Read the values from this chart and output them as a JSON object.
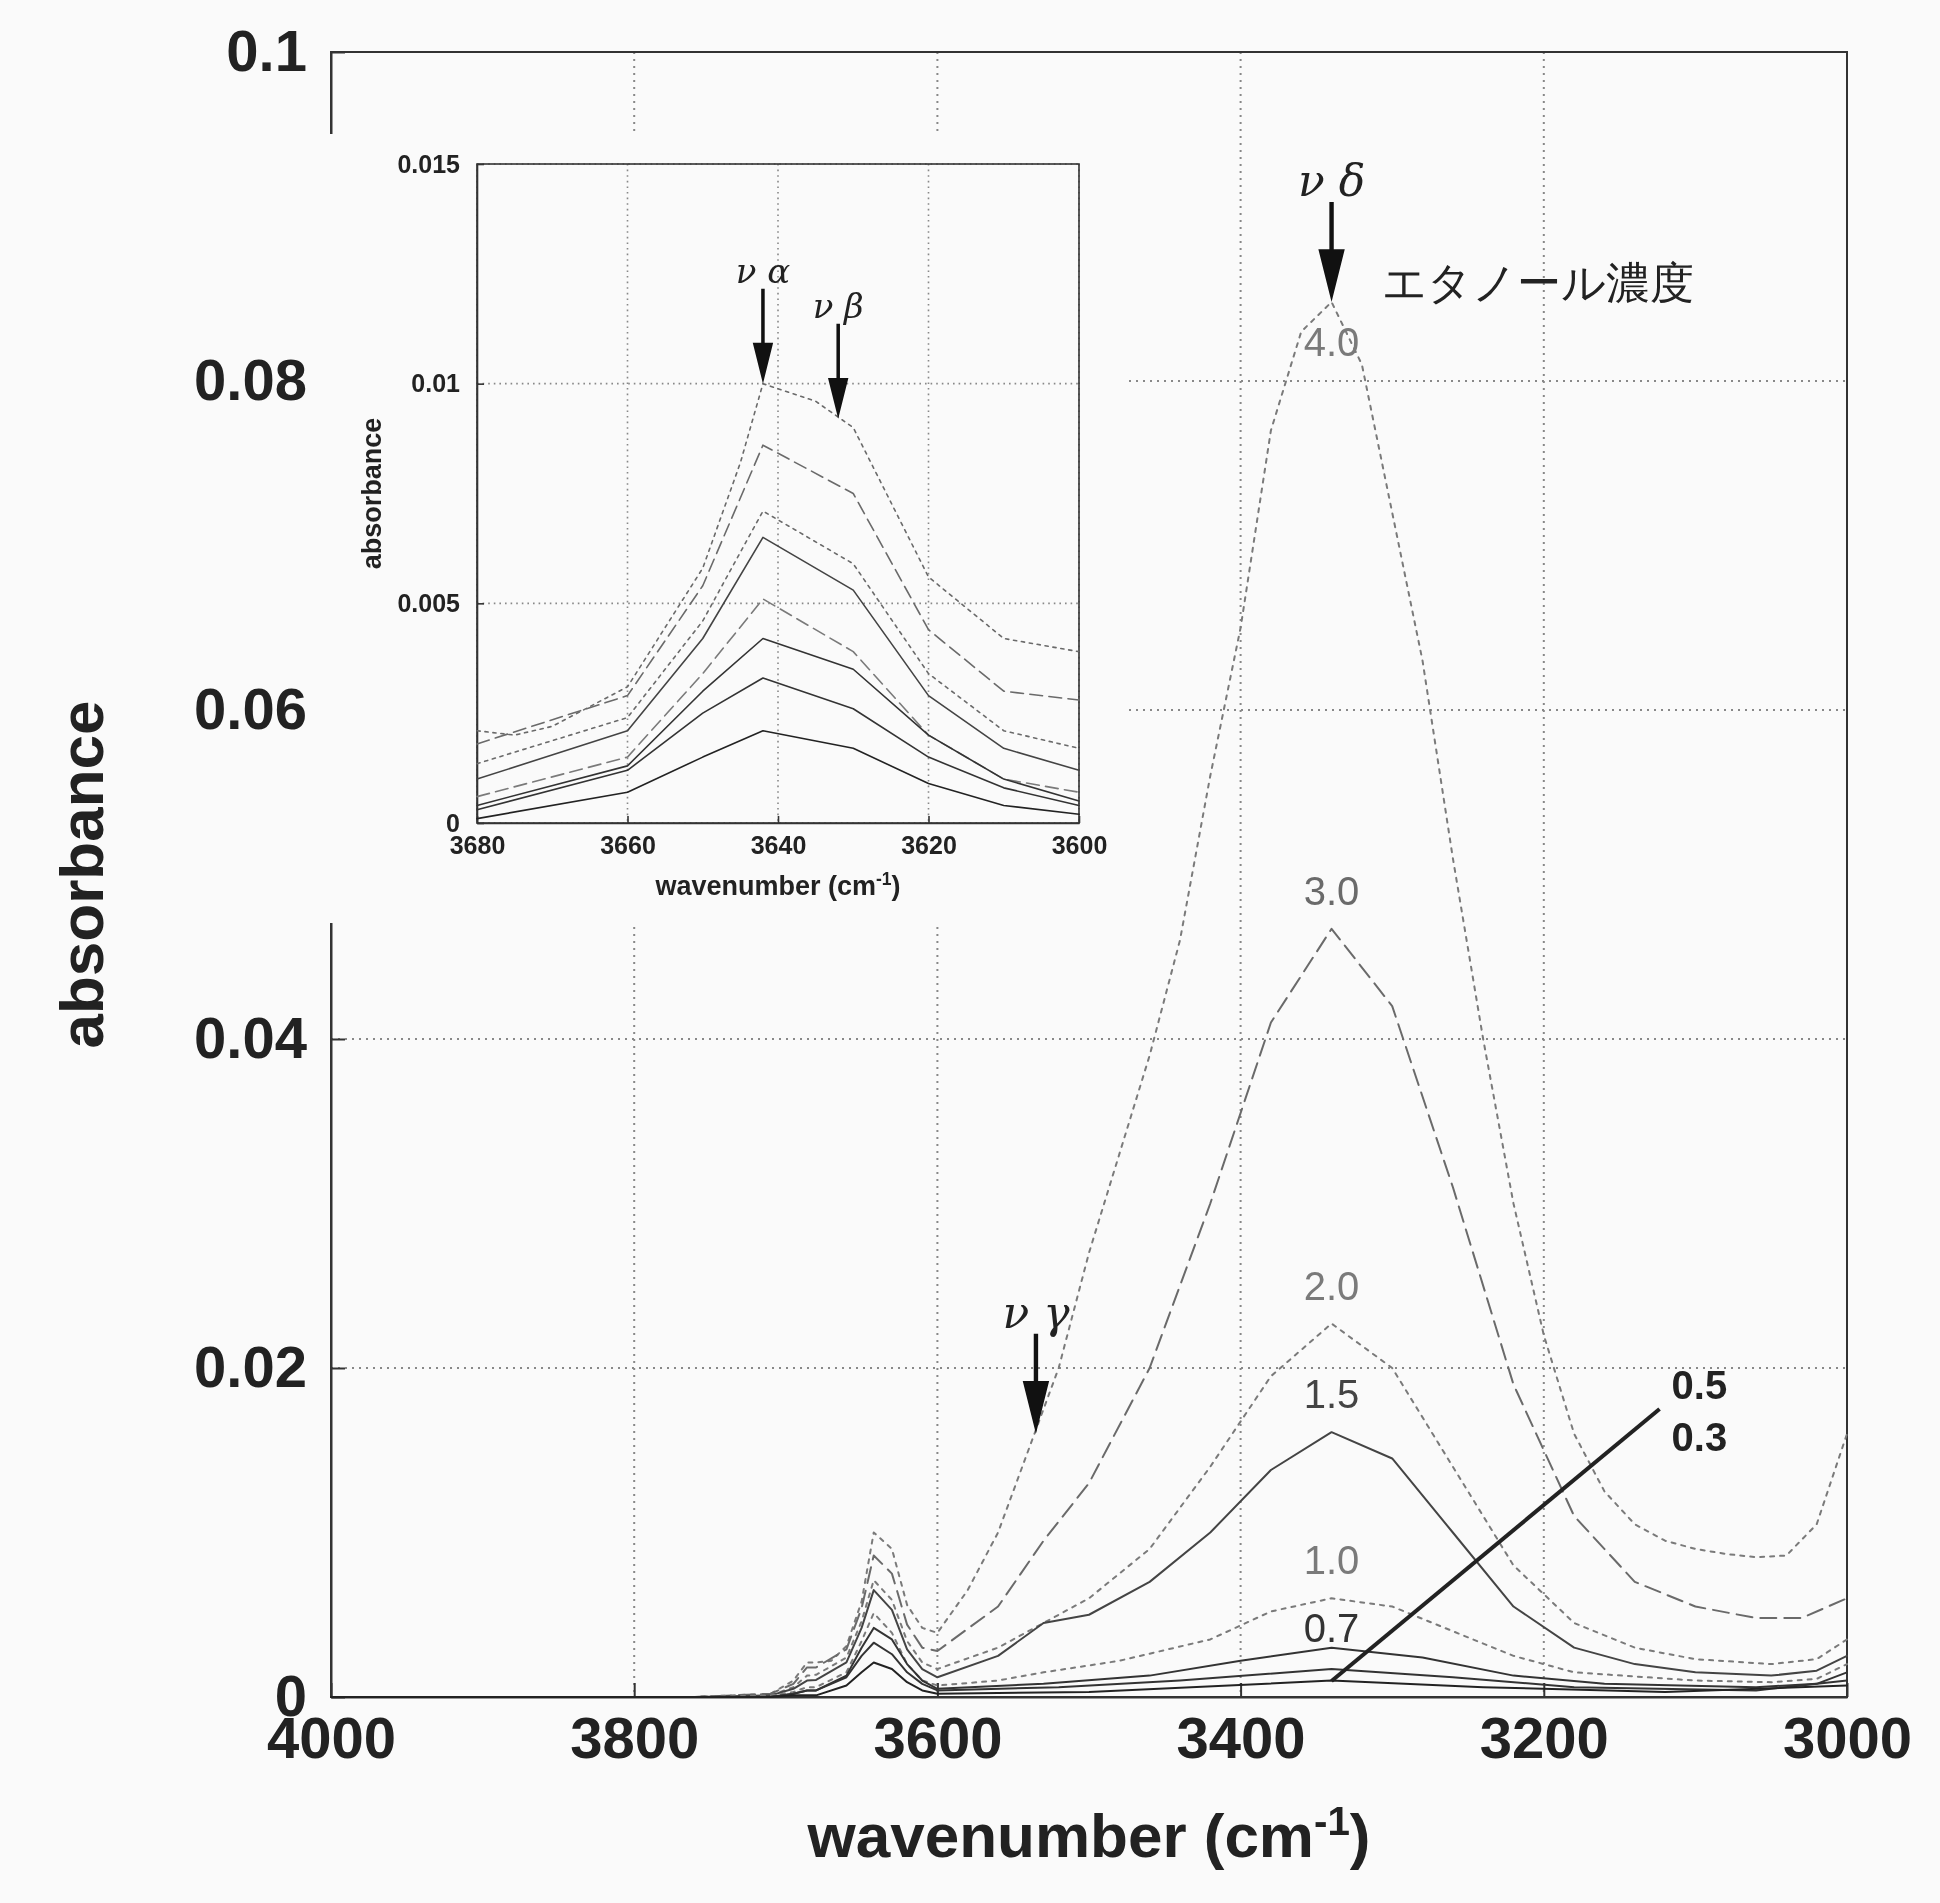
{
  "chart_data": [
    {
      "type": "line",
      "xlabel": "wavenumber (cm$^{-1}$)",
      "ylabel": "absorbance",
      "xlim": [
        4000,
        3000
      ],
      "ylim": [
        0,
        0.1
      ],
      "xticks": [
        4000,
        3800,
        3600,
        3400,
        3200,
        3000
      ],
      "yticks": [
        0,
        0.02,
        0.04,
        0.06,
        0.08,
        0.1
      ],
      "grid": true,
      "series": [
        {
          "name": "4.0",
          "color": "#7a7a7a",
          "line_style": "dotted",
          "x": [
            4000,
            3760,
            3710,
            3695,
            3686,
            3680,
            3670,
            3660,
            3650,
            3642,
            3630,
            3620,
            3610,
            3600,
            3580,
            3560,
            3540,
            3520,
            3500,
            3480,
            3460,
            3440,
            3420,
            3400,
            3380,
            3360,
            3340,
            3320,
            3300,
            3280,
            3260,
            3240,
            3220,
            3200,
            3180,
            3160,
            3140,
            3120,
            3100,
            3080,
            3060,
            3040,
            3020,
            3000
          ],
          "values": [
            0,
            0,
            0.0002,
            0.001,
            0.0021,
            0.0021,
            0.0022,
            0.0031,
            0.0058,
            0.01,
            0.009,
            0.0056,
            0.0042,
            0.0039,
            0.0065,
            0.01,
            0.015,
            0.02,
            0.027,
            0.033,
            0.039,
            0.046,
            0.056,
            0.065,
            0.077,
            0.083,
            0.0848,
            0.081,
            0.072,
            0.063,
            0.051,
            0.04,
            0.03,
            0.022,
            0.016,
            0.0125,
            0.0105,
            0.0095,
            0.009,
            0.0087,
            0.0085,
            0.0086,
            0.0105,
            0.016
          ]
        },
        {
          "name": "3.0",
          "color": "#6a6a6a",
          "line_style": "dashed",
          "x": [
            4000,
            3760,
            3710,
            3695,
            3686,
            3680,
            3660,
            3650,
            3642,
            3630,
            3620,
            3610,
            3600,
            3560,
            3530,
            3500,
            3460,
            3420,
            3380,
            3340,
            3300,
            3260,
            3220,
            3180,
            3140,
            3100,
            3060,
            3030,
            3000
          ],
          "values": [
            0,
            0,
            0.0002,
            0.0008,
            0.0018,
            0.0018,
            0.0029,
            0.0054,
            0.0086,
            0.0075,
            0.0044,
            0.003,
            0.0028,
            0.0055,
            0.0095,
            0.013,
            0.02,
            0.03,
            0.041,
            0.0467,
            0.042,
            0.031,
            0.019,
            0.011,
            0.007,
            0.0055,
            0.0048,
            0.0048,
            0.006
          ]
        },
        {
          "name": "2.0",
          "color": "#7a7a7a",
          "line_style": "dotted",
          "x": [
            4000,
            3760,
            3710,
            3695,
            3686,
            3680,
            3660,
            3650,
            3642,
            3630,
            3620,
            3610,
            3600,
            3560,
            3530,
            3500,
            3460,
            3420,
            3380,
            3340,
            3300,
            3260,
            3220,
            3180,
            3140,
            3100,
            3050,
            3020,
            3000
          ],
          "values": [
            0,
            0,
            0.0001,
            0.0006,
            0.0013,
            0.00135,
            0.0024,
            0.0046,
            0.0071,
            0.0059,
            0.0034,
            0.0021,
            0.0017,
            0.003,
            0.0045,
            0.006,
            0.009,
            0.014,
            0.0195,
            0.0227,
            0.02,
            0.014,
            0.008,
            0.0045,
            0.003,
            0.0023,
            0.002,
            0.0023,
            0.0035
          ]
        },
        {
          "name": "1.5",
          "color": "#444444",
          "line_style": "solid",
          "x": [
            4000,
            3760,
            3710,
            3695,
            3686,
            3680,
            3660,
            3650,
            3642,
            3630,
            3620,
            3610,
            3600,
            3560,
            3530,
            3500,
            3460,
            3420,
            3380,
            3340,
            3300,
            3260,
            3220,
            3180,
            3140,
            3100,
            3050,
            3020,
            3000
          ],
          "values": [
            0,
            0,
            0.0001,
            0.0005,
            0.001,
            0.00104,
            0.0021,
            0.0042,
            0.0065,
            0.0053,
            0.0029,
            0.0017,
            0.0012,
            0.0025,
            0.0045,
            0.005,
            0.007,
            0.01,
            0.0138,
            0.0161,
            0.0145,
            0.01,
            0.0055,
            0.003,
            0.002,
            0.0015,
            0.0013,
            0.0016,
            0.0025
          ]
        },
        {
          "name": "1.0",
          "color": "#7a7a7a",
          "line_style": "dotted",
          "x": [
            4000,
            3760,
            3710,
            3695,
            3686,
            3680,
            3660,
            3650,
            3642,
            3630,
            3620,
            3610,
            3600,
            3560,
            3530,
            3480,
            3420,
            3380,
            3340,
            3300,
            3260,
            3220,
            3180,
            3100,
            3050,
            3020,
            3000
          ],
          "values": [
            0,
            0,
            0.0001,
            0.0003,
            0.0006,
            0.0006,
            0.0015,
            0.0034,
            0.0051,
            0.0039,
            0.002,
            0.001,
            0.0007,
            0.001,
            0.0015,
            0.0022,
            0.0035,
            0.0052,
            0.006,
            0.0055,
            0.004,
            0.0025,
            0.0015,
            0.001,
            0.0009,
            0.0011,
            0.002
          ]
        },
        {
          "name": "0.7",
          "color": "#333333",
          "line_style": "solid",
          "x": [
            4000,
            3760,
            3710,
            3695,
            3686,
            3680,
            3660,
            3650,
            3642,
            3630,
            3620,
            3610,
            3600,
            3530,
            3460,
            3400,
            3340,
            3280,
            3220,
            3160,
            3060,
            3020,
            3000
          ],
          "values": [
            0,
            0,
            0,
            0.0002,
            0.0004,
            0.0004,
            0.0013,
            0.003,
            0.0042,
            0.0035,
            0.002,
            0.001,
            0.0005,
            0.0008,
            0.0013,
            0.0022,
            0.003,
            0.0024,
            0.0013,
            0.0008,
            0.0006,
            0.0008,
            0.0015
          ]
        },
        {
          "name": "0.5",
          "color": "#333333",
          "line_style": "solid",
          "x": [
            4000,
            3760,
            3710,
            3695,
            3686,
            3680,
            3660,
            3650,
            3642,
            3630,
            3620,
            3610,
            3600,
            3520,
            3440,
            3340,
            3260,
            3180,
            3060,
            3000
          ],
          "values": [
            0,
            0,
            0,
            0.0002,
            0.0004,
            0.0004,
            0.0012,
            0.0025,
            0.0033,
            0.0026,
            0.0015,
            0.0008,
            0.0004,
            0.0006,
            0.001,
            0.0017,
            0.0012,
            0.0006,
            0.0004,
            0.001
          ]
        },
        {
          "name": "0.3",
          "color": "#222222",
          "line_style": "solid",
          "x": [
            4000,
            3760,
            3710,
            3695,
            3686,
            3680,
            3660,
            3650,
            3642,
            3630,
            3620,
            3610,
            3600,
            3500,
            3340,
            3240,
            3120,
            3000
          ],
          "values": [
            0,
            0,
            0,
            0.0001,
            0.0001,
            0.0001,
            0.0007,
            0.0015,
            0.0021,
            0.0017,
            0.0009,
            0.0004,
            0.0002,
            0.0003,
            0.001,
            0.0006,
            0.0003,
            0.0007
          ]
        }
      ],
      "annotations": [
        {
          "text": "ν δ",
          "x": 3340,
          "y": 0.0848
        },
        {
          "text": "ν γ",
          "x": 3535,
          "y": 0.016
        },
        "エタノール濃度"
      ]
    },
    {
      "type": "line",
      "xlabel": "wavenumber (cm$^{-1}$)",
      "ylabel": "absorbance",
      "xlim": [
        3680,
        3600
      ],
      "ylim": [
        0,
        0.015
      ],
      "xticks": [
        3680,
        3660,
        3640,
        3620,
        3600
      ],
      "yticks": [
        0,
        0.005,
        0.01,
        0.015
      ],
      "grid": true,
      "x": [
        3680,
        3660,
        3650,
        3642,
        3630,
        3620,
        3610,
        3600
      ],
      "series": [
        {
          "color": "#6a6a6a",
          "line_style": "dotted",
          "x": [
            3680,
            3675,
            3670,
            3660,
            3650,
            3645,
            3642,
            3635,
            3630,
            3620,
            3610,
            3600
          ],
          "values": [
            0.0021,
            0.002,
            0.0022,
            0.0031,
            0.0058,
            0.0082,
            0.01,
            0.0096,
            0.009,
            0.0056,
            0.0042,
            0.0039
          ]
        },
        {
          "color": "#6a6a6a",
          "line_style": "dashed",
          "values": [
            0.0018,
            0.0029,
            0.0054,
            0.0086,
            0.0075,
            0.0044,
            0.003,
            0.0028
          ]
        },
        {
          "color": "#6a6a6a",
          "line_style": "dotted",
          "values": [
            0.00135,
            0.0024,
            0.0046,
            0.0071,
            0.0059,
            0.0034,
            0.0021,
            0.0017
          ]
        },
        {
          "color": "#444444",
          "line_style": "solid",
          "values": [
            0.001,
            0.0021,
            0.0042,
            0.0065,
            0.0053,
            0.0029,
            0.0017,
            0.0012
          ]
        },
        {
          "color": "#7a7a7a",
          "line_style": "dashed",
          "values": [
            0.0006,
            0.0015,
            0.0034,
            0.0051,
            0.0039,
            0.002,
            0.001,
            0.0007
          ]
        },
        {
          "color": "#333333",
          "line_style": "solid",
          "values": [
            0.0004,
            0.0013,
            0.003,
            0.0042,
            0.0035,
            0.002,
            0.001,
            0.0005
          ]
        },
        {
          "color": "#333333",
          "line_style": "solid",
          "values": [
            0.0003,
            0.0012,
            0.0025,
            0.0033,
            0.0026,
            0.0015,
            0.0008,
            0.0004
          ]
        },
        {
          "color": "#222222",
          "line_style": "solid",
          "values": [
            0.0001,
            0.0007,
            0.0015,
            0.0021,
            0.0017,
            0.0009,
            0.0004,
            0.0002
          ]
        }
      ],
      "annotations": [
        {
          "text": "ν α",
          "x": 3642,
          "y": 0.01
        },
        {
          "text": "ν β",
          "x": 3632,
          "y": 0.0092
        }
      ]
    }
  ]
}
